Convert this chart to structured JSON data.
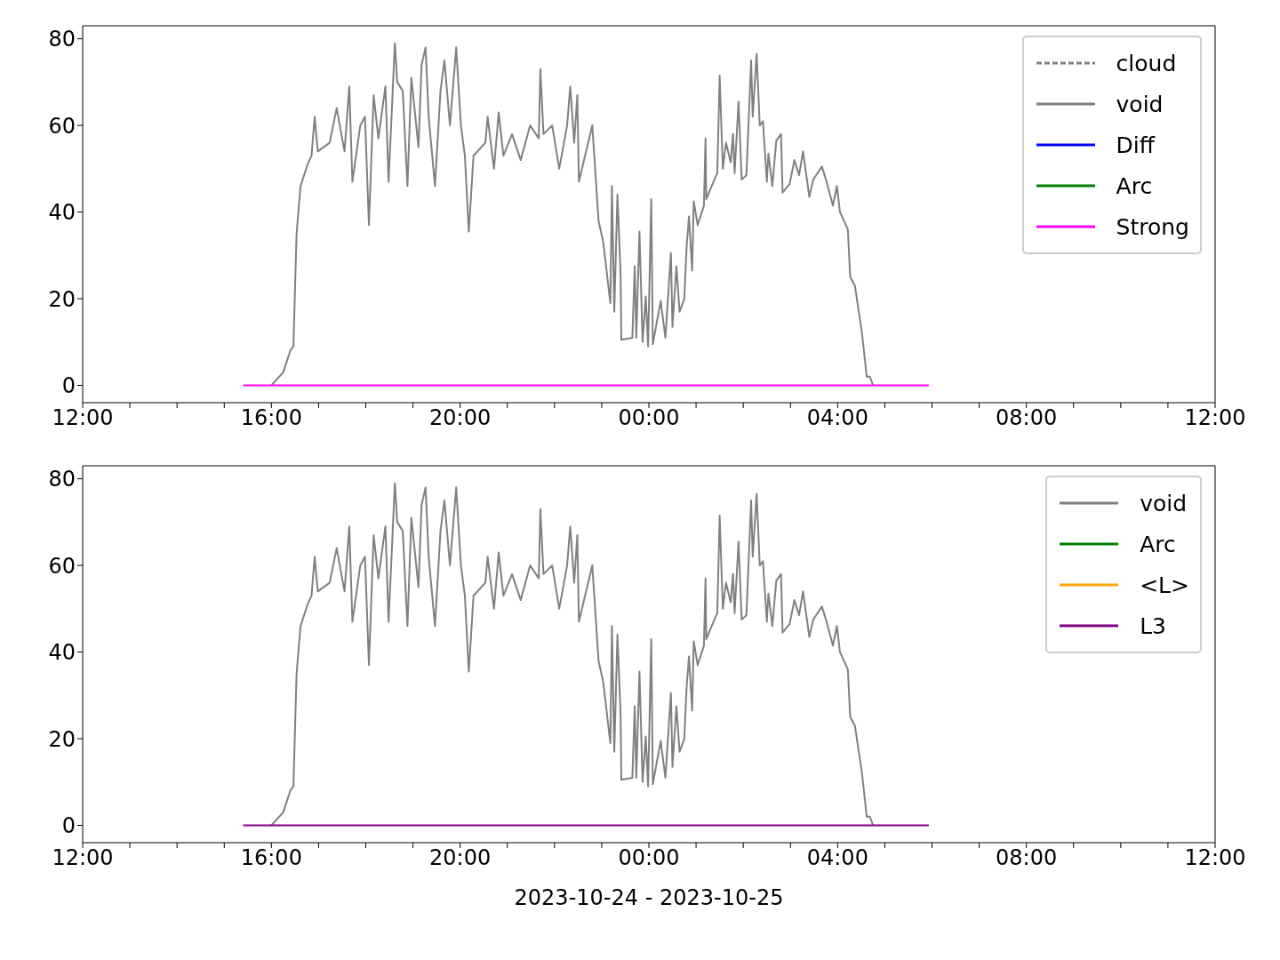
{
  "chart_data": [
    {
      "type": "line",
      "legend": "top right",
      "ylim": [
        -4,
        83
      ],
      "yticks": [
        0,
        20,
        40,
        60,
        80
      ],
      "xlim": [
        "2023-10-24T12:00",
        "2023-10-25T12:00"
      ],
      "xticks": [
        {
          "value": "2023-10-24T12:00",
          "label": "12:00"
        },
        {
          "value": "2023-10-24T13:00",
          "label": null
        },
        {
          "value": "2023-10-24T14:00",
          "label": null
        },
        {
          "value": "2023-10-24T15:00",
          "label": null
        },
        {
          "value": "2023-10-24T16:00",
          "label": "16:00"
        },
        {
          "value": "2023-10-24T17:00",
          "label": null
        },
        {
          "value": "2023-10-24T18:00",
          "label": null
        },
        {
          "value": "2023-10-24T19:00",
          "label": null
        },
        {
          "value": "2023-10-24T20:00",
          "label": "20:00"
        },
        {
          "value": "2023-10-24T21:00",
          "label": null
        },
        {
          "value": "2023-10-24T22:00",
          "label": null
        },
        {
          "value": "2023-10-24T23:00",
          "label": null
        },
        {
          "value": "2023-10-25T00:00",
          "label": "00:00"
        },
        {
          "value": "2023-10-25T01:00",
          "label": null
        },
        {
          "value": "2023-10-25T02:00",
          "label": null
        },
        {
          "value": "2023-10-25T03:00",
          "label": null
        },
        {
          "value": "2023-10-25T04:00",
          "label": "04:00"
        },
        {
          "value": "2023-10-25T05:00",
          "label": null
        },
        {
          "value": "2023-10-25T06:00",
          "label": null
        },
        {
          "value": "2023-10-25T07:00",
          "label": null
        },
        {
          "value": "2023-10-25T08:00",
          "label": "08:00"
        },
        {
          "value": "2023-10-25T09:00",
          "label": null
        },
        {
          "value": "2023-10-25T10:00",
          "label": null
        },
        {
          "value": "2023-10-25T11:00",
          "label": null
        },
        {
          "value": "2023-10-25T12:00",
          "label": "12:00"
        }
      ],
      "series": [
        {
          "name": "cloud",
          "color": "#808080",
          "line_style": "dashed"
        },
        {
          "name": "void",
          "color": "#808080",
          "x": [
            "2023-10-24T16:00",
            "2023-10-24T16:15",
            "2023-10-24T16:24",
            "2023-10-24T16:28",
            "2023-10-24T16:32",
            "2023-10-24T16:37",
            "2023-10-24T16:46",
            "2023-10-24T16:51",
            "2023-10-24T16:55",
            "2023-10-24T16:59",
            "2023-10-24T17:14",
            "2023-10-24T17:23",
            "2023-10-24T17:33",
            "2023-10-24T17:39",
            "2023-10-24T17:43",
            "2023-10-24T17:53",
            "2023-10-24T17:59",
            "2023-10-24T18:04",
            "2023-10-24T18:10",
            "2023-10-24T18:16",
            "2023-10-24T18:25",
            "2023-10-24T18:29",
            "2023-10-24T18:37",
            "2023-10-24T18:40",
            "2023-10-24T18:47",
            "2023-10-24T18:53",
            "2023-10-24T18:58",
            "2023-10-24T19:07",
            "2023-10-24T19:11",
            "2023-10-24T19:16",
            "2023-10-24T19:20",
            "2023-10-24T19:28",
            "2023-10-24T19:35",
            "2023-10-24T19:40",
            "2023-10-24T19:47",
            "2023-10-24T19:55",
            "2023-10-24T20:01",
            "2023-10-24T20:06",
            "2023-10-24T20:11",
            "2023-10-24T20:17",
            "2023-10-24T20:32",
            "2023-10-24T20:35",
            "2023-10-24T20:43",
            "2023-10-24T20:49",
            "2023-10-24T20:55",
            "2023-10-24T21:06",
            "2023-10-24T21:17",
            "2023-10-24T21:29",
            "2023-10-24T21:40",
            "2023-10-24T21:42",
            "2023-10-24T21:46",
            "2023-10-24T21:57",
            "2023-10-24T22:06",
            "2023-10-24T22:16",
            "2023-10-24T22:20",
            "2023-10-24T22:25",
            "2023-10-24T22:29",
            "2023-10-24T22:31",
            "2023-10-24T22:48",
            "2023-10-24T22:56",
            "2023-10-24T23:02",
            "2023-10-24T23:11",
            "2023-10-24T23:13",
            "2023-10-24T23:16",
            "2023-10-24T23:20",
            "2023-10-24T23:24",
            "2023-10-24T23:25",
            "2023-10-24T23:39",
            "2023-10-24T23:42",
            "2023-10-24T23:44",
            "2023-10-24T23:48",
            "2023-10-24T23:52",
            "2023-10-24T23:56",
            "2023-10-24T23:59",
            "2023-10-25T00:03",
            "2023-10-25T00:05",
            "2023-10-25T00:15",
            "2023-10-25T00:21",
            "2023-10-25T00:28",
            "2023-10-25T00:30",
            "2023-10-25T00:35",
            "2023-10-25T00:39",
            "2023-10-25T00:45",
            "2023-10-25T00:48",
            "2023-10-25T00:51",
            "2023-10-25T00:55",
            "2023-10-25T00:57",
            "2023-10-25T01:02",
            "2023-10-25T01:10",
            "2023-10-25T01:12",
            "2023-10-25T01:13",
            "2023-10-25T01:21",
            "2023-10-25T01:27",
            "2023-10-25T01:30",
            "2023-10-25T01:34",
            "2023-10-25T01:38",
            "2023-10-25T01:44",
            "2023-10-25T01:47",
            "2023-10-25T01:49",
            "2023-10-25T01:54",
            "2023-10-25T01:58",
            "2023-10-25T02:04",
            "2023-10-25T02:10",
            "2023-10-25T02:12",
            "2023-10-25T02:17",
            "2023-10-25T02:21",
            "2023-10-25T02:25",
            "2023-10-25T02:30",
            "2023-10-25T02:32",
            "2023-10-25T02:37",
            "2023-10-25T02:42",
            "2023-10-25T02:48",
            "2023-10-25T02:50",
            "2023-10-25T02:59",
            "2023-10-25T03:05",
            "2023-10-25T03:11",
            "2023-10-25T03:16",
            "2023-10-25T03:24",
            "2023-10-25T03:29",
            "2023-10-25T03:40",
            "2023-10-25T03:46",
            "2023-10-25T03:54",
            "2023-10-25T03:59",
            "2023-10-25T04:03",
            "2023-10-25T04:13",
            "2023-10-25T04:16",
            "2023-10-25T04:22",
            "2023-10-25T04:31",
            "2023-10-25T04:37",
            "2023-10-25T04:41",
            "2023-10-25T04:45"
          ],
          "values": [
            0,
            3,
            8,
            9,
            35,
            46,
            51,
            53,
            62,
            54,
            56,
            64,
            54,
            69,
            47,
            60,
            62,
            37,
            67,
            57,
            69,
            47,
            79,
            70,
            68,
            46,
            71,
            55,
            74,
            78,
            62,
            46,
            68,
            75,
            60,
            78,
            60,
            53,
            35.5,
            53,
            56,
            62,
            50,
            63,
            53,
            58,
            52,
            60,
            57,
            73,
            58,
            60,
            50,
            60,
            69,
            56,
            67,
            47,
            60,
            38,
            33,
            19,
            46,
            17,
            44,
            26,
            10.5,
            11,
            27.5,
            11,
            35.5,
            10,
            20.5,
            9,
            43,
            9.5,
            19.5,
            11,
            30.5,
            13.5,
            27.5,
            17,
            20,
            32,
            39,
            26.5,
            42.5,
            37,
            41.5,
            57,
            43,
            46.5,
            49,
            71.5,
            50,
            56,
            51.5,
            58,
            49,
            65.5,
            47.5,
            48.5,
            75,
            62,
            76.5,
            60,
            61,
            47,
            53.5,
            46,
            56.5,
            58,
            44.5,
            46.5,
            52,
            48.5,
            54,
            43.5,
            47.5,
            50.5,
            47,
            41.5,
            46,
            40,
            36,
            25,
            23,
            12,
            2,
            2,
            0
          ]
        },
        {
          "name": "Diff",
          "color": "#0000ff"
        },
        {
          "name": "Arc",
          "color": "#008000"
        },
        {
          "name": "Strong",
          "color": "#ff00ff",
          "x": [
            "2023-10-24T15:24",
            "2023-10-25T05:56"
          ],
          "values": [
            0,
            0
          ]
        }
      ]
    },
    {
      "type": "line",
      "legend": "top right",
      "ylim": [
        -4,
        83
      ],
      "yticks": [
        0,
        20,
        40,
        60,
        80
      ],
      "xlabel": "2023-10-24 - 2023-10-25",
      "xlim": [
        "2023-10-24T12:00",
        "2023-10-25T12:00"
      ],
      "xticks": [
        {
          "value": "2023-10-24T12:00",
          "label": "12:00"
        },
        {
          "value": "2023-10-24T13:00",
          "label": null
        },
        {
          "value": "2023-10-24T14:00",
          "label": null
        },
        {
          "value": "2023-10-24T15:00",
          "label": null
        },
        {
          "value": "2023-10-24T16:00",
          "label": "16:00"
        },
        {
          "value": "2023-10-24T17:00",
          "label": null
        },
        {
          "value": "2023-10-24T18:00",
          "label": null
        },
        {
          "value": "2023-10-24T19:00",
          "label": null
        },
        {
          "value": "2023-10-24T20:00",
          "label": "20:00"
        },
        {
          "value": "2023-10-24T21:00",
          "label": null
        },
        {
          "value": "2023-10-24T22:00",
          "label": null
        },
        {
          "value": "2023-10-24T23:00",
          "label": null
        },
        {
          "value": "2023-10-25T00:00",
          "label": "00:00"
        },
        {
          "value": "2023-10-25T01:00",
          "label": null
        },
        {
          "value": "2023-10-25T02:00",
          "label": null
        },
        {
          "value": "2023-10-25T03:00",
          "label": null
        },
        {
          "value": "2023-10-25T04:00",
          "label": "04:00"
        },
        {
          "value": "2023-10-25T05:00",
          "label": null
        },
        {
          "value": "2023-10-25T06:00",
          "label": null
        },
        {
          "value": "2023-10-25T07:00",
          "label": null
        },
        {
          "value": "2023-10-25T08:00",
          "label": "08:00"
        },
        {
          "value": "2023-10-25T09:00",
          "label": null
        },
        {
          "value": "2023-10-25T10:00",
          "label": null
        },
        {
          "value": "2023-10-25T11:00",
          "label": null
        },
        {
          "value": "2023-10-25T12:00",
          "label": "12:00"
        }
      ],
      "series": [
        {
          "name": "void",
          "color": "#808080",
          "x": [
            "2023-10-24T16:00",
            "2023-10-24T16:15",
            "2023-10-24T16:24",
            "2023-10-24T16:28",
            "2023-10-24T16:32",
            "2023-10-24T16:37",
            "2023-10-24T16:46",
            "2023-10-24T16:51",
            "2023-10-24T16:55",
            "2023-10-24T16:59",
            "2023-10-24T17:14",
            "2023-10-24T17:23",
            "2023-10-24T17:33",
            "2023-10-24T17:39",
            "2023-10-24T17:43",
            "2023-10-24T17:53",
            "2023-10-24T17:59",
            "2023-10-24T18:04",
            "2023-10-24T18:10",
            "2023-10-24T18:16",
            "2023-10-24T18:25",
            "2023-10-24T18:29",
            "2023-10-24T18:37",
            "2023-10-24T18:40",
            "2023-10-24T18:47",
            "2023-10-24T18:53",
            "2023-10-24T18:58",
            "2023-10-24T19:07",
            "2023-10-24T19:11",
            "2023-10-24T19:16",
            "2023-10-24T19:20",
            "2023-10-24T19:28",
            "2023-10-24T19:35",
            "2023-10-24T19:40",
            "2023-10-24T19:47",
            "2023-10-24T19:55",
            "2023-10-24T20:01",
            "2023-10-24T20:06",
            "2023-10-24T20:11",
            "2023-10-24T20:17",
            "2023-10-24T20:32",
            "2023-10-24T20:35",
            "2023-10-24T20:43",
            "2023-10-24T20:49",
            "2023-10-24T20:55",
            "2023-10-24T21:06",
            "2023-10-24T21:17",
            "2023-10-24T21:29",
            "2023-10-24T21:40",
            "2023-10-24T21:42",
            "2023-10-24T21:46",
            "2023-10-24T21:57",
            "2023-10-24T22:06",
            "2023-10-24T22:16",
            "2023-10-24T22:20",
            "2023-10-24T22:25",
            "2023-10-24T22:29",
            "2023-10-24T22:31",
            "2023-10-24T22:48",
            "2023-10-24T22:56",
            "2023-10-24T23:02",
            "2023-10-24T23:11",
            "2023-10-24T23:13",
            "2023-10-24T23:16",
            "2023-10-24T23:20",
            "2023-10-24T23:24",
            "2023-10-24T23:25",
            "2023-10-24T23:39",
            "2023-10-24T23:42",
            "2023-10-24T23:44",
            "2023-10-24T23:48",
            "2023-10-24T23:52",
            "2023-10-24T23:56",
            "2023-10-24T23:59",
            "2023-10-25T00:03",
            "2023-10-25T00:05",
            "2023-10-25T00:15",
            "2023-10-25T00:21",
            "2023-10-25T00:28",
            "2023-10-25T00:30",
            "2023-10-25T00:35",
            "2023-10-25T00:39",
            "2023-10-25T00:45",
            "2023-10-25T00:48",
            "2023-10-25T00:51",
            "2023-10-25T00:55",
            "2023-10-25T00:57",
            "2023-10-25T01:02",
            "2023-10-25T01:10",
            "2023-10-25T01:12",
            "2023-10-25T01:13",
            "2023-10-25T01:21",
            "2023-10-25T01:27",
            "2023-10-25T01:30",
            "2023-10-25T01:34",
            "2023-10-25T01:38",
            "2023-10-25T01:44",
            "2023-10-25T01:47",
            "2023-10-25T01:49",
            "2023-10-25T01:54",
            "2023-10-25T01:58",
            "2023-10-25T02:04",
            "2023-10-25T02:10",
            "2023-10-25T02:12",
            "2023-10-25T02:17",
            "2023-10-25T02:21",
            "2023-10-25T02:25",
            "2023-10-25T02:30",
            "2023-10-25T02:32",
            "2023-10-25T02:37",
            "2023-10-25T02:42",
            "2023-10-25T02:48",
            "2023-10-25T02:50",
            "2023-10-25T02:59",
            "2023-10-25T03:05",
            "2023-10-25T03:11",
            "2023-10-25T03:16",
            "2023-10-25T03:24",
            "2023-10-25T03:29",
            "2023-10-25T03:40",
            "2023-10-25T03:46",
            "2023-10-25T03:54",
            "2023-10-25T03:59",
            "2023-10-25T04:03",
            "2023-10-25T04:13",
            "2023-10-25T04:16",
            "2023-10-25T04:22",
            "2023-10-25T04:31",
            "2023-10-25T04:37",
            "2023-10-25T04:41",
            "2023-10-25T04:45"
          ],
          "values": [
            0,
            3,
            8,
            9,
            35,
            46,
            51,
            53,
            62,
            54,
            56,
            64,
            54,
            69,
            47,
            60,
            62,
            37,
            67,
            57,
            69,
            47,
            79,
            70,
            68,
            46,
            71,
            55,
            74,
            78,
            62,
            46,
            68,
            75,
            60,
            78,
            60,
            53,
            35.5,
            53,
            56,
            62,
            50,
            63,
            53,
            58,
            52,
            60,
            57,
            73,
            58,
            60,
            50,
            60,
            69,
            56,
            67,
            47,
            60,
            38,
            33,
            19,
            46,
            17,
            44,
            26,
            10.5,
            11,
            27.5,
            11,
            35.5,
            10,
            20.5,
            9,
            43,
            9.5,
            19.5,
            11,
            30.5,
            13.5,
            27.5,
            17,
            20,
            32,
            39,
            26.5,
            42.5,
            37,
            41.5,
            57,
            43,
            46.5,
            49,
            71.5,
            50,
            56,
            51.5,
            58,
            49,
            65.5,
            47.5,
            48.5,
            75,
            62,
            76.5,
            60,
            61,
            47,
            53.5,
            46,
            56.5,
            58,
            44.5,
            46.5,
            52,
            48.5,
            54,
            43.5,
            47.5,
            50.5,
            47,
            41.5,
            46,
            40,
            36,
            25,
            23,
            12,
            2,
            2,
            0
          ]
        },
        {
          "name": "Arc",
          "color": "#008000"
        },
        {
          "name": "<L>",
          "color": "#ffa500"
        },
        {
          "name": "L3",
          "color": "#800080",
          "x": [
            "2023-10-24T15:24",
            "2023-10-25T05:56"
          ],
          "values": [
            0,
            0
          ]
        }
      ]
    }
  ]
}
